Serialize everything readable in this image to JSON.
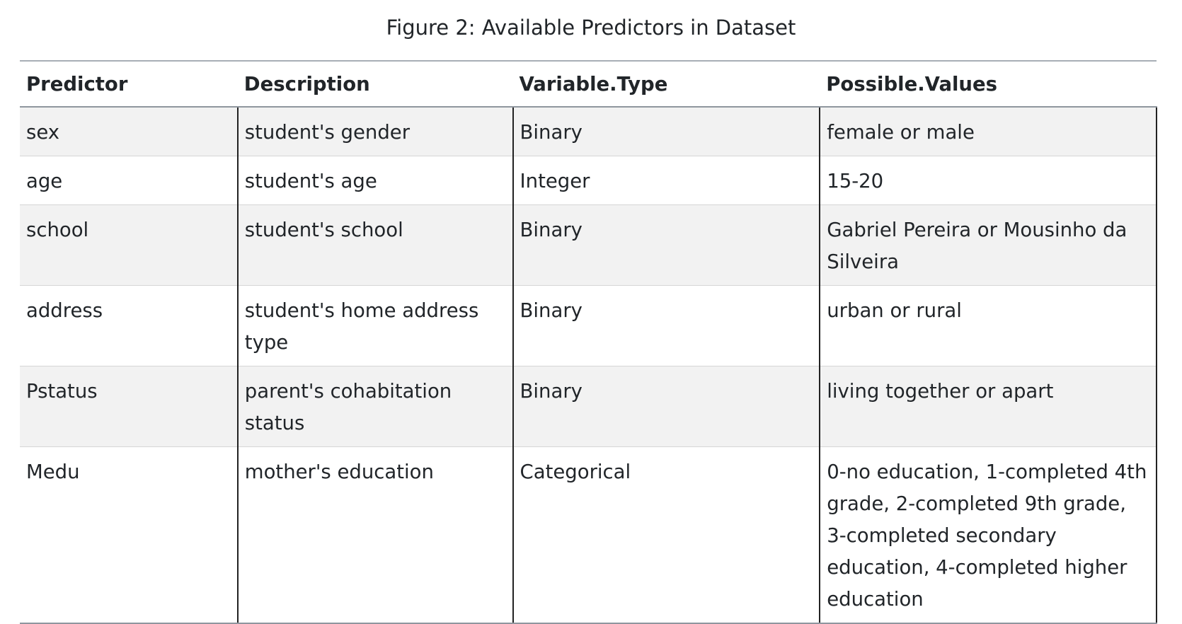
{
  "caption": "Figure 2: Available Predictors in Dataset",
  "table": {
    "headers": [
      "Predictor",
      "Description",
      "Variable.Type",
      "Possible.Values"
    ],
    "rows": [
      [
        "sex",
        "student's gender",
        "Binary",
        "female or male"
      ],
      [
        "age",
        "student's age",
        "Integer",
        "15-20"
      ],
      [
        "school",
        "student's school",
        "Binary",
        "Gabriel Pereira or Mousinho da Silveira"
      ],
      [
        "address",
        "student's home address type",
        "Binary",
        "urban or rural"
      ],
      [
        "Pstatus",
        "parent's cohabitation status",
        "Binary",
        "living together or apart"
      ],
      [
        "Medu",
        "mother's education",
        "Categorical",
        "0-no education, 1-completed 4th grade, 2-completed 9th grade, 3-completed secondary education, 4-completed higher education"
      ]
    ]
  }
}
